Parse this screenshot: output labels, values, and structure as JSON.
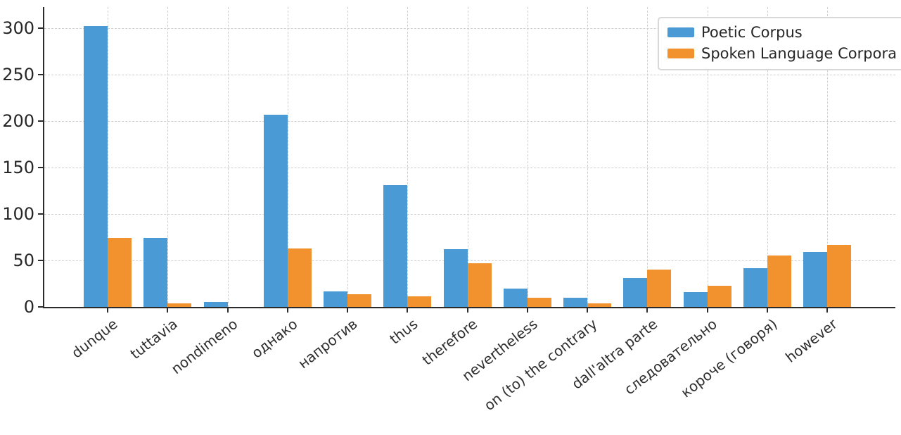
{
  "chart_data": {
    "type": "bar",
    "categories": [
      "dunque",
      "tuttavia",
      "nondimeno",
      "однако",
      "напротив",
      "thus",
      "therefore",
      "nevertheless",
      "on (to) the contrary",
      "dall'altra parte",
      "следовательно",
      "короче (говоря)",
      "however"
    ],
    "series": [
      {
        "name": "Poetic Corpus",
        "color": "#4a9bd5",
        "values": [
          302,
          74,
          5,
          207,
          17,
          131,
          62,
          20,
          10,
          31,
          16,
          42,
          59
        ]
      },
      {
        "name": "Spoken Language Corpora",
        "color": "#f1922e",
        "values": [
          74,
          4,
          0,
          63,
          14,
          11,
          47,
          10,
          4,
          40,
          23,
          55,
          67
        ]
      }
    ],
    "title": "",
    "xlabel": "",
    "ylabel": "",
    "ylim": [
      0,
      322
    ],
    "yticks": [
      0,
      50,
      100,
      150,
      200,
      250,
      300
    ],
    "grid": "dashed, horizontal and vertical",
    "legend_position": "upper right",
    "background_color": "#ffffff",
    "axis_color": "#2b2b2b",
    "gridline_color": "#cfcfcf"
  }
}
